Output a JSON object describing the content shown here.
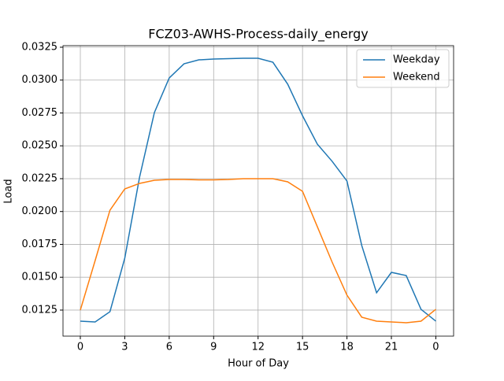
{
  "chart_data": {
    "type": "line",
    "title": "FCZ03-AWHS-Process-daily_energy",
    "x_label": "Hour of Day",
    "y_label": "Load",
    "x": [
      0,
      1,
      2,
      3,
      4,
      5,
      6,
      7,
      8,
      9,
      10,
      11,
      12,
      13,
      14,
      15,
      16,
      17,
      18,
      19,
      20,
      21,
      22,
      23,
      24
    ],
    "series": [
      {
        "name": "Weekday",
        "color": "#1f77b4",
        "values": [
          0.01166,
          0.0116,
          0.01238,
          0.01645,
          0.02262,
          0.02753,
          0.03016,
          0.03124,
          0.03154,
          0.0316,
          0.03163,
          0.03166,
          0.03166,
          0.03136,
          0.02969,
          0.02729,
          0.02513,
          0.02382,
          0.02232,
          0.01741,
          0.01382,
          0.01537,
          0.01513,
          0.01256,
          0.01166
        ]
      },
      {
        "name": "Weekend",
        "color": "#ff7f0e",
        "values": [
          0.0125,
          0.01627,
          0.0201,
          0.02172,
          0.02214,
          0.02238,
          0.02244,
          0.02244,
          0.02241,
          0.02241,
          0.02244,
          0.0225,
          0.0225,
          0.0225,
          0.02226,
          0.02154,
          0.01885,
          0.01615,
          0.01364,
          0.01196,
          0.01166,
          0.0116,
          0.01154,
          0.01166,
          0.01256
        ]
      }
    ],
    "xlim": [
      -1.17,
      25.2
    ],
    "ylim": [
      0.01052,
      0.03262
    ],
    "xticks": [
      0,
      3,
      6,
      9,
      12,
      15,
      18,
      21,
      {
        "value": 24,
        "label": "0"
      }
    ],
    "yticks": [
      0.0125,
      {
        "value": 0.015,
        "label": "0.0150"
      },
      0.0175,
      {
        "value": 0.02,
        "label": "0.0200"
      },
      0.0225,
      {
        "value": 0.025,
        "label": "0.0250"
      },
      0.0275,
      {
        "value": 0.03,
        "label": "0.0300"
      },
      0.0325
    ],
    "grid": true,
    "legend": "upper right"
  }
}
